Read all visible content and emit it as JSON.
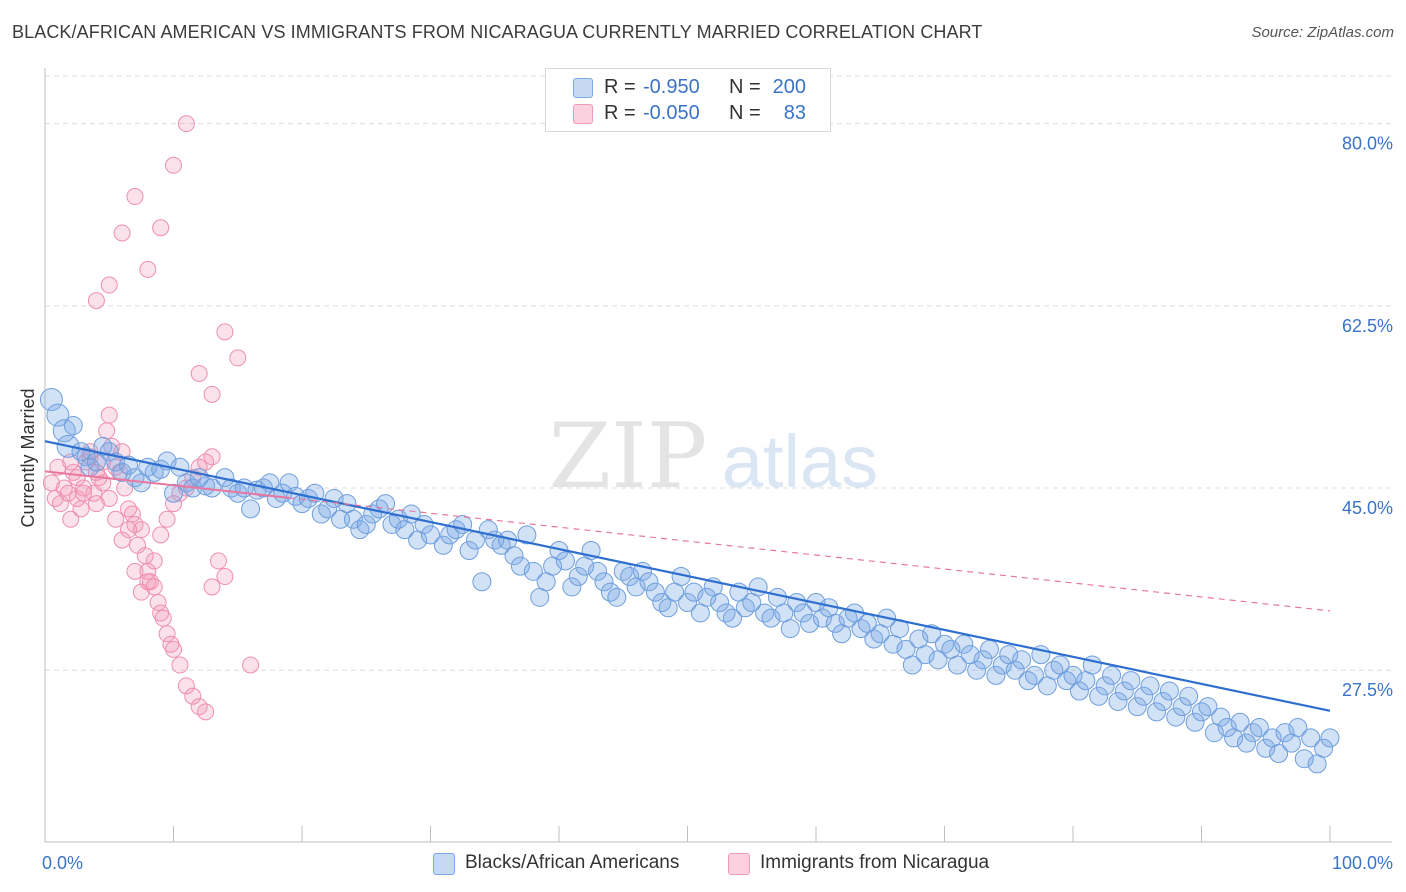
{
  "title": "BLACK/AFRICAN AMERICAN VS IMMIGRANTS FROM NICARAGUA CURRENTLY MARRIED CORRELATION CHART",
  "source": "Source: ZipAtlas.com",
  "watermark": {
    "zip": "ZIP",
    "atlas": "atlas"
  },
  "legend": {
    "rows": [
      {
        "r_label": "R =",
        "r_value": "-0.950",
        "n_label": "N =",
        "n_value": "200",
        "color": "#7aaae6"
      },
      {
        "r_label": "R =",
        "r_value": "-0.050",
        "n_label": "N =",
        "n_value": "83",
        "color": "#f19ab7"
      }
    ]
  },
  "bottom_legend": [
    {
      "label": "Blacks/African Americans",
      "color": "#7aaae6"
    },
    {
      "label": "Immigrants from Nicaragua",
      "color": "#f19ab7"
    }
  ],
  "chart_data": {
    "type": "scatter",
    "title": "BLACK/AFRICAN AMERICAN VS IMMIGRANTS FROM NICARAGUA CURRENTLY MARRIED CORRELATION CHART",
    "xlabel": "",
    "ylabel": "Currently Married",
    "xlim": [
      0,
      100
    ],
    "ylim": [
      11,
      84
    ],
    "x_tick_labels": [
      "0.0%",
      "100.0%"
    ],
    "y_ticks": [
      27.5,
      45.0,
      62.5,
      80.0
    ],
    "y_tick_labels": [
      "27.5%",
      "45.0%",
      "62.5%",
      "80.0%"
    ],
    "grid": true,
    "series": [
      {
        "name": "Blacks/African Americans",
        "color": "#7aaae6",
        "trend": {
          "x": [
            0,
            100
          ],
          "y": [
            49.5,
            23.6
          ],
          "style": "solid"
        },
        "points": [
          [
            0.5,
            53.5
          ],
          [
            1.0,
            52.0
          ],
          [
            1.5,
            50.5
          ],
          [
            1.8,
            49.0
          ],
          [
            2.2,
            51.0
          ],
          [
            2.8,
            48.5
          ],
          [
            3.2,
            48.0
          ],
          [
            3.5,
            47.0
          ],
          [
            4.0,
            47.5
          ],
          [
            4.5,
            49.0
          ],
          [
            5.0,
            48.5
          ],
          [
            5.5,
            47.5
          ],
          [
            6.0,
            46.5
          ],
          [
            6.5,
            47.2
          ],
          [
            7.0,
            46.0
          ],
          [
            7.5,
            45.5
          ],
          [
            8.0,
            47.0
          ],
          [
            8.5,
            46.5
          ],
          [
            9.0,
            46.8
          ],
          [
            9.5,
            47.6
          ],
          [
            10.0,
            44.5
          ],
          [
            10.5,
            47.0
          ],
          [
            11.0,
            45.5
          ],
          [
            11.5,
            45.0
          ],
          [
            12.0,
            46.0
          ],
          [
            12.5,
            45.2
          ],
          [
            13.0,
            45.0
          ],
          [
            14.0,
            46.0
          ],
          [
            14.5,
            45.0
          ],
          [
            15.0,
            44.5
          ],
          [
            15.5,
            45.0
          ],
          [
            16.0,
            43.0
          ],
          [
            16.5,
            44.8
          ],
          [
            17.0,
            45.0
          ],
          [
            17.5,
            45.5
          ],
          [
            18.0,
            44.0
          ],
          [
            18.5,
            44.5
          ],
          [
            19.0,
            45.5
          ],
          [
            19.5,
            44.2
          ],
          [
            20.0,
            43.5
          ],
          [
            20.5,
            44.0
          ],
          [
            21.0,
            44.5
          ],
          [
            21.5,
            42.5
          ],
          [
            22.0,
            43.0
          ],
          [
            22.5,
            44.0
          ],
          [
            23.0,
            42.0
          ],
          [
            23.5,
            43.5
          ],
          [
            24.0,
            42.0
          ],
          [
            24.5,
            41.0
          ],
          [
            25.0,
            41.5
          ],
          [
            25.5,
            42.5
          ],
          [
            26.0,
            43.0
          ],
          [
            26.5,
            43.5
          ],
          [
            27.0,
            41.5
          ],
          [
            27.5,
            42.0
          ],
          [
            28.0,
            41.0
          ],
          [
            28.5,
            42.5
          ],
          [
            29.0,
            40.0
          ],
          [
            29.5,
            41.5
          ],
          [
            30.0,
            40.5
          ],
          [
            31.0,
            39.5
          ],
          [
            31.5,
            40.5
          ],
          [
            32.0,
            41.0
          ],
          [
            32.5,
            41.5
          ],
          [
            33.0,
            39.0
          ],
          [
            33.5,
            40.0
          ],
          [
            34.0,
            36.0
          ],
          [
            34.5,
            41.0
          ],
          [
            35.0,
            40.0
          ],
          [
            35.5,
            39.5
          ],
          [
            36.0,
            40.0
          ],
          [
            36.5,
            38.5
          ],
          [
            37.0,
            37.5
          ],
          [
            37.5,
            40.5
          ],
          [
            38.0,
            37.0
          ],
          [
            38.5,
            34.5
          ],
          [
            39.0,
            36.0
          ],
          [
            39.5,
            37.5
          ],
          [
            40.0,
            39.0
          ],
          [
            40.5,
            38.0
          ],
          [
            41.0,
            35.5
          ],
          [
            41.5,
            36.5
          ],
          [
            42.0,
            37.5
          ],
          [
            42.5,
            39.0
          ],
          [
            43.0,
            37.0
          ],
          [
            43.5,
            36.0
          ],
          [
            44.0,
            35.0
          ],
          [
            44.5,
            34.5
          ],
          [
            45.0,
            37.0
          ],
          [
            45.5,
            36.5
          ],
          [
            46.0,
            35.5
          ],
          [
            46.5,
            37.0
          ],
          [
            47.0,
            36.0
          ],
          [
            47.5,
            35.0
          ],
          [
            48.0,
            34.0
          ],
          [
            48.5,
            33.5
          ],
          [
            49.0,
            35.0
          ],
          [
            49.5,
            36.5
          ],
          [
            50.0,
            34.0
          ],
          [
            50.5,
            35.0
          ],
          [
            51.0,
            33.0
          ],
          [
            51.5,
            34.5
          ],
          [
            52.0,
            35.5
          ],
          [
            52.5,
            34.0
          ],
          [
            53.0,
            33.0
          ],
          [
            53.5,
            32.5
          ],
          [
            54.0,
            35.0
          ],
          [
            54.5,
            33.5
          ],
          [
            55.0,
            34.0
          ],
          [
            55.5,
            35.5
          ],
          [
            56.0,
            33.0
          ],
          [
            56.5,
            32.5
          ],
          [
            57.0,
            34.5
          ],
          [
            57.5,
            33.0
          ],
          [
            58.0,
            31.5
          ],
          [
            58.5,
            34.0
          ],
          [
            59.0,
            33.0
          ],
          [
            59.5,
            32.0
          ],
          [
            60.0,
            34.0
          ],
          [
            60.5,
            32.5
          ],
          [
            61.0,
            33.5
          ],
          [
            61.5,
            32.0
          ],
          [
            62.0,
            31.0
          ],
          [
            62.5,
            32.5
          ],
          [
            63.0,
            33.0
          ],
          [
            63.5,
            31.5
          ],
          [
            64.0,
            32.0
          ],
          [
            64.5,
            30.5
          ],
          [
            65.0,
            31.0
          ],
          [
            65.5,
            32.5
          ],
          [
            66.0,
            30.0
          ],
          [
            66.5,
            31.5
          ],
          [
            67.0,
            29.5
          ],
          [
            67.5,
            28.0
          ],
          [
            68.0,
            30.5
          ],
          [
            68.5,
            29.0
          ],
          [
            69.0,
            31.0
          ],
          [
            69.5,
            28.5
          ],
          [
            70.0,
            30.0
          ],
          [
            70.5,
            29.5
          ],
          [
            71.0,
            28.0
          ],
          [
            71.5,
            30.0
          ],
          [
            72.0,
            29.0
          ],
          [
            72.5,
            27.5
          ],
          [
            73.0,
            28.5
          ],
          [
            73.5,
            29.5
          ],
          [
            74.0,
            27.0
          ],
          [
            74.5,
            28.0
          ],
          [
            75.0,
            29.0
          ],
          [
            75.5,
            27.5
          ],
          [
            76.0,
            28.5
          ],
          [
            76.5,
            26.5
          ],
          [
            77.0,
            27.0
          ],
          [
            77.5,
            29.0
          ],
          [
            78.0,
            26.0
          ],
          [
            78.5,
            27.5
          ],
          [
            79.0,
            28.0
          ],
          [
            79.5,
            26.5
          ],
          [
            80.0,
            27.0
          ],
          [
            80.5,
            25.5
          ],
          [
            81.0,
            26.5
          ],
          [
            81.5,
            28.0
          ],
          [
            82.0,
            25.0
          ],
          [
            82.5,
            26.0
          ],
          [
            83.0,
            27.0
          ],
          [
            83.5,
            24.5
          ],
          [
            84.0,
            25.5
          ],
          [
            84.5,
            26.5
          ],
          [
            85.0,
            24.0
          ],
          [
            85.5,
            25.0
          ],
          [
            86.0,
            26.0
          ],
          [
            86.5,
            23.5
          ],
          [
            87.0,
            24.5
          ],
          [
            87.5,
            25.5
          ],
          [
            88.0,
            23.0
          ],
          [
            88.5,
            24.0
          ],
          [
            89.0,
            25.0
          ],
          [
            89.5,
            22.5
          ],
          [
            90.0,
            23.5
          ],
          [
            90.5,
            24.0
          ],
          [
            91.0,
            21.5
          ],
          [
            91.5,
            23.0
          ],
          [
            92.0,
            22.0
          ],
          [
            92.5,
            21.0
          ],
          [
            93.0,
            22.5
          ],
          [
            93.5,
            20.5
          ],
          [
            94.0,
            21.5
          ],
          [
            94.5,
            22.0
          ],
          [
            95.0,
            20.0
          ],
          [
            95.5,
            21.0
          ],
          [
            96.0,
            19.5
          ],
          [
            96.5,
            21.5
          ],
          [
            97.0,
            20.5
          ],
          [
            97.5,
            22.0
          ],
          [
            98.0,
            19.0
          ],
          [
            98.5,
            21.0
          ],
          [
            99.0,
            18.5
          ],
          [
            99.5,
            20.0
          ],
          [
            100.0,
            21.0
          ]
        ]
      },
      {
        "name": "Immigrants from Nicaragua",
        "color": "#f19ab7",
        "trend": {
          "x": [
            0,
            100
          ],
          "y": [
            46.6,
            33.2
          ],
          "style": "dashed"
        },
        "points": [
          [
            0.5,
            45.5
          ],
          [
            0.8,
            44.0
          ],
          [
            1.0,
            47.0
          ],
          [
            1.2,
            43.5
          ],
          [
            1.5,
            45.0
          ],
          [
            1.8,
            44.5
          ],
          [
            2.0,
            42.0
          ],
          [
            2.2,
            46.5
          ],
          [
            2.5,
            44.0
          ],
          [
            2.8,
            43.0
          ],
          [
            3.0,
            45.0
          ],
          [
            3.2,
            47.5
          ],
          [
            3.5,
            48.0
          ],
          [
            3.8,
            44.5
          ],
          [
            4.0,
            43.5
          ],
          [
            4.2,
            46.0
          ],
          [
            4.5,
            45.5
          ],
          [
            4.8,
            50.5
          ],
          [
            5.0,
            52.0
          ],
          [
            5.2,
            49.0
          ],
          [
            5.5,
            47.0
          ],
          [
            5.8,
            46.5
          ],
          [
            6.0,
            48.5
          ],
          [
            6.2,
            45.0
          ],
          [
            6.5,
            43.0
          ],
          [
            6.8,
            42.5
          ],
          [
            7.0,
            41.5
          ],
          [
            7.2,
            39.5
          ],
          [
            7.5,
            41.0
          ],
          [
            7.8,
            38.5
          ],
          [
            8.0,
            37.0
          ],
          [
            8.2,
            36.0
          ],
          [
            8.5,
            35.5
          ],
          [
            8.8,
            34.0
          ],
          [
            9.0,
            33.0
          ],
          [
            9.2,
            32.5
          ],
          [
            9.5,
            31.0
          ],
          [
            9.8,
            30.0
          ],
          [
            10.0,
            29.5
          ],
          [
            10.5,
            28.0
          ],
          [
            11.0,
            26.0
          ],
          [
            11.5,
            25.0
          ],
          [
            12.0,
            24.0
          ],
          [
            12.5,
            23.5
          ],
          [
            13.0,
            35.5
          ],
          [
            13.5,
            38.0
          ],
          [
            14.0,
            36.5
          ],
          [
            2.0,
            47.5
          ],
          [
            2.5,
            46.0
          ],
          [
            3.0,
            44.5
          ],
          [
            3.5,
            48.5
          ],
          [
            4.0,
            46.5
          ],
          [
            4.5,
            47.5
          ],
          [
            5.0,
            44.0
          ],
          [
            5.5,
            42.0
          ],
          [
            6.0,
            40.0
          ],
          [
            6.5,
            41.0
          ],
          [
            7.0,
            37.0
          ],
          [
            7.5,
            35.0
          ],
          [
            8.0,
            36.0
          ],
          [
            8.5,
            38.0
          ],
          [
            9.0,
            40.5
          ],
          [
            9.5,
            42.0
          ],
          [
            10.0,
            43.5
          ],
          [
            10.5,
            44.5
          ],
          [
            11.0,
            45.0
          ],
          [
            11.5,
            46.0
          ],
          [
            12.0,
            47.0
          ],
          [
            12.5,
            47.5
          ],
          [
            13.0,
            48.0
          ],
          [
            4.0,
            63.0
          ],
          [
            5.0,
            64.5
          ],
          [
            6.0,
            69.5
          ],
          [
            7.0,
            73.0
          ],
          [
            8.0,
            66.0
          ],
          [
            9.0,
            70.0
          ],
          [
            10.0,
            76.0
          ],
          [
            11.0,
            80.0
          ],
          [
            12.0,
            56.0
          ],
          [
            13.0,
            54.0
          ],
          [
            14.0,
            60.0
          ],
          [
            15.0,
            57.5
          ],
          [
            16.0,
            28.0
          ]
        ]
      }
    ]
  }
}
